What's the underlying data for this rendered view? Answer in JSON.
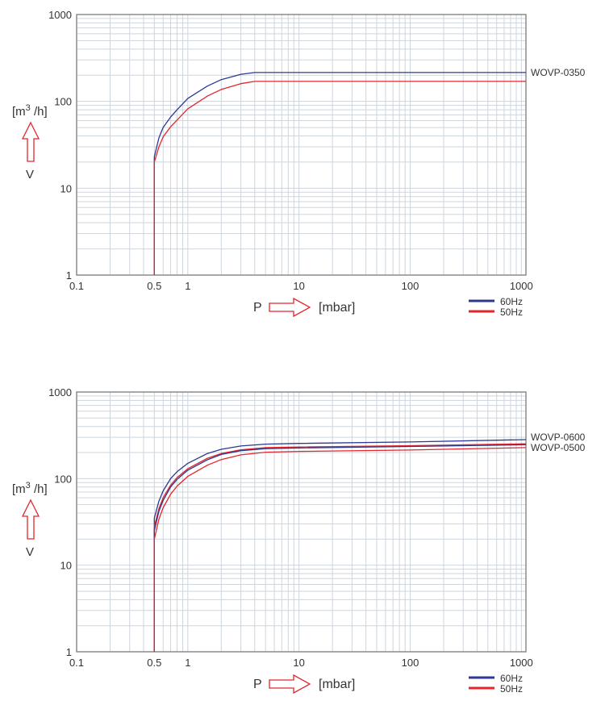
{
  "colors": {
    "hz60": "#2b3990",
    "hz50": "#e1262d",
    "grid": "#cdd5dd",
    "axis": "#8c8c8c",
    "arrow": "#e1262d"
  },
  "chart_data": [
    {
      "type": "line",
      "xscale": "log",
      "yscale": "log",
      "xlim": [
        0.1,
        1100
      ],
      "ylim": [
        1,
        1000
      ],
      "xticks": [
        "0.1",
        "0.5",
        "1",
        "10",
        "100",
        "1000"
      ],
      "xtick_values": [
        0.1,
        0.5,
        1,
        10,
        100,
        1000
      ],
      "yticks": [
        "1",
        "10",
        "100",
        "1000"
      ],
      "ytick_values": [
        1,
        10,
        100,
        1000
      ],
      "xlabel": "P",
      "xunit": "[mbar]",
      "ylabel": "V",
      "yunit_base": "[m",
      "yunit_sup": "3",
      "yunit_end": " /h]",
      "grid": true,
      "legend": [
        {
          "label": "60Hz",
          "color": "#2b3990"
        },
        {
          "label": "50Hz",
          "color": "#e1262d"
        }
      ],
      "legend_position": "bottom-right",
      "model_labels": [
        {
          "text": "WOVP-0350",
          "at_value": 215
        }
      ],
      "series": [
        {
          "name": "WOVP-0350 60Hz",
          "color": "#2b3990",
          "x": [
            0.5,
            0.5,
            0.55,
            0.6,
            0.7,
            0.8,
            1,
            1.5,
            2,
            3,
            4,
            1100
          ],
          "y": [
            1,
            23,
            38,
            50,
            66,
            80,
            108,
            150,
            178,
            205,
            215,
            215
          ]
        },
        {
          "name": "WOVP-0350 50Hz",
          "color": "#e1262d",
          "x": [
            0.5,
            0.5,
            0.55,
            0.6,
            0.7,
            0.8,
            1,
            1.5,
            2,
            3,
            4,
            1100
          ],
          "y": [
            1,
            20,
            30,
            39,
            51,
            61,
            82,
            115,
            137,
            160,
            170,
            170
          ]
        }
      ]
    },
    {
      "type": "line",
      "xscale": "log",
      "yscale": "log",
      "xlim": [
        0.1,
        1100
      ],
      "ylim": [
        1,
        1000
      ],
      "xticks": [
        "0.1",
        "0.5",
        "1",
        "10",
        "100",
        "1000"
      ],
      "xtick_values": [
        0.1,
        0.5,
        1,
        10,
        100,
        1000
      ],
      "yticks": [
        "1",
        "10",
        "100",
        "1000"
      ],
      "ytick_values": [
        1,
        10,
        100,
        1000
      ],
      "xlabel": "P",
      "xunit": "[mbar]",
      "ylabel": "V",
      "yunit_base": "[m",
      "yunit_sup": "3",
      "yunit_end": " /h]",
      "grid": true,
      "legend": [
        {
          "label": "60Hz",
          "color": "#2b3990"
        },
        {
          "label": "50Hz",
          "color": "#e1262d"
        }
      ],
      "legend_position": "bottom-right",
      "model_labels": [
        {
          "text": "WOVP-0600",
          "at_value": 300
        },
        {
          "text": "WOVP-0500",
          "at_value": 228
        }
      ],
      "series": [
        {
          "name": "WOVP-0600 60Hz",
          "color": "#2b3990",
          "x": [
            0.5,
            0.5,
            0.55,
            0.6,
            0.7,
            0.8,
            1,
            1.5,
            2,
            3,
            5,
            10,
            100,
            1100
          ],
          "y": [
            1,
            35,
            55,
            72,
            100,
            120,
            150,
            195,
            218,
            238,
            250,
            255,
            265,
            282
          ]
        },
        {
          "name": "WOVP-0600 50Hz",
          "color": "#e1262d",
          "x": [
            0.5,
            0.5,
            0.55,
            0.6,
            0.7,
            0.8,
            1,
            1.5,
            2,
            3,
            5,
            10,
            100,
            1100
          ],
          "y": [
            1,
            28,
            45,
            60,
            84,
            103,
            130,
            172,
            195,
            215,
            228,
            232,
            240,
            252
          ]
        },
        {
          "name": "WOVP-0500 60Hz",
          "color": "#2b3990",
          "x": [
            0.5,
            0.5,
            0.55,
            0.6,
            0.7,
            0.8,
            1,
            1.5,
            2,
            3,
            5,
            10,
            100,
            1100
          ],
          "y": [
            1,
            25,
            42,
            56,
            80,
            98,
            125,
            165,
            190,
            210,
            222,
            226,
            235,
            246
          ]
        },
        {
          "name": "WOVP-0500 50Hz",
          "color": "#e1262d",
          "x": [
            0.5,
            0.5,
            0.55,
            0.6,
            0.7,
            0.8,
            1,
            1.5,
            2,
            3,
            5,
            10,
            100,
            1100
          ],
          "y": [
            1,
            20,
            34,
            46,
            66,
            82,
            106,
            143,
            166,
            188,
            202,
            206,
            214,
            228
          ]
        }
      ]
    }
  ]
}
